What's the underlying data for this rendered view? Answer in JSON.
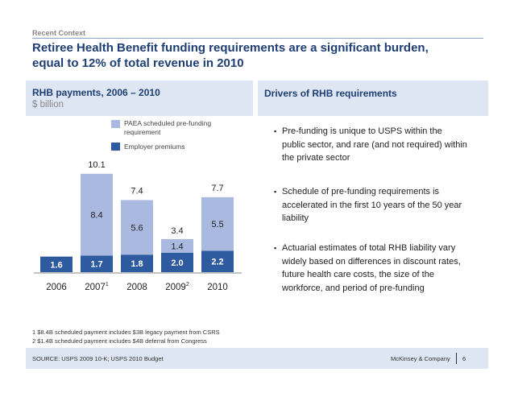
{
  "header": {
    "context": "Recent Context",
    "title_line1": "Retiree Health Benefit funding requirements are a significant burden,",
    "title_line2": "equal to 12% of total revenue in 2010"
  },
  "left_panel": {
    "title": "RHB payments, 2006 – 2010",
    "subtitle": "$ billion"
  },
  "right_panel": {
    "title": "Drivers of RHB requirements",
    "bullets": [
      "Pre-funding is unique to USPS within the public sector, and rare (and not required) within the private sector",
      "Schedule of pre-funding requirements is accelerated in the first 10 years of the 50 year liability",
      "Actuarial estimates of total RHB liability vary widely based on differences in discount rates, future health care costs, the size of the workforce, and period of pre-funding"
    ],
    "bullet_glyph": "▪"
  },
  "chart_data": {
    "type": "bar",
    "stacked": true,
    "categories": [
      "2006",
      "2007",
      "2008",
      "2009",
      "2010"
    ],
    "category_superscripts": [
      "",
      "1",
      "",
      "2",
      ""
    ],
    "series": [
      {
        "name": "Employer premiums",
        "values": [
          1.6,
          1.7,
          1.8,
          2.0,
          2.2
        ],
        "color": "#2e5aa0"
      },
      {
        "name": "PAEA scheduled pre-funding requirement",
        "values": [
          0,
          8.4,
          5.6,
          1.4,
          5.5
        ],
        "color": "#a9b9e0"
      }
    ],
    "totals": [
      null,
      10.1,
      7.4,
      3.4,
      7.7
    ],
    "unit": "$ billion"
  },
  "legend": {
    "items": [
      {
        "label_line1": "PAEA scheduled pre-funding",
        "label_line2": "requirement",
        "color": "#a9b9e0"
      },
      {
        "label_line1": "Employer premiums",
        "label_line2": "",
        "color": "#2e5aa0"
      }
    ]
  },
  "footnotes": [
    "1 $8.4B scheduled payment includes $3B legacy payment from CSRS",
    "2 $1.4B scheduled payment includes $4B deferral from Congress"
  ],
  "footer": {
    "source": "SOURCE: USPS 2009 10-K; USPS 2010 Budget",
    "brand": "McKinsey & Company",
    "page": "6"
  }
}
